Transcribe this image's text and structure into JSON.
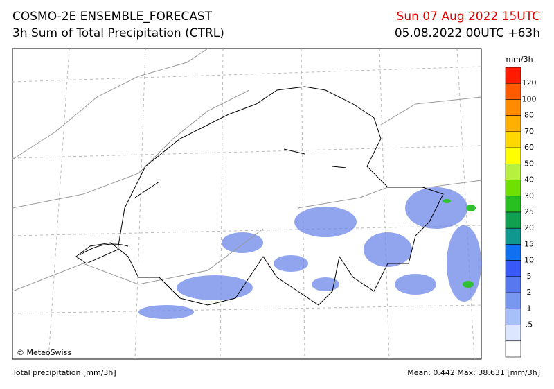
{
  "header": {
    "title": "COSMO-2E ENSEMBLE_FORECAST",
    "subtitle": "3h Sum of Total Precipitation (CTRL)",
    "valid_time": "Sun 07 Aug 2022 15UTC",
    "run": "05.08.2022 00UTC +63h"
  },
  "map": {
    "copyright": "© MeteoSwiss"
  },
  "legend": {
    "unit": "mm/3h",
    "labels": [
      "120",
      "100",
      "80",
      "70",
      "60",
      "50",
      "40",
      "30",
      "25",
      "20",
      "15",
      "10",
      "5",
      "2",
      "1",
      ".5"
    ],
    "colors": [
      "#ff1a00",
      "#ff5a00",
      "#ff8c00",
      "#ffb000",
      "#ffd800",
      "#ffff00",
      "#b8f040",
      "#70e000",
      "#28c020",
      "#10a050",
      "#109890",
      "#1070f0",
      "#3858f8",
      "#5878f0",
      "#7898f0",
      "#a8c0fa",
      "#dde6ff",
      "#ffffff"
    ]
  },
  "footer": {
    "left": "Total precipitation [mm/3h]",
    "right": "Mean:  0.442 Max: 38.631 [mm/3h]"
  }
}
